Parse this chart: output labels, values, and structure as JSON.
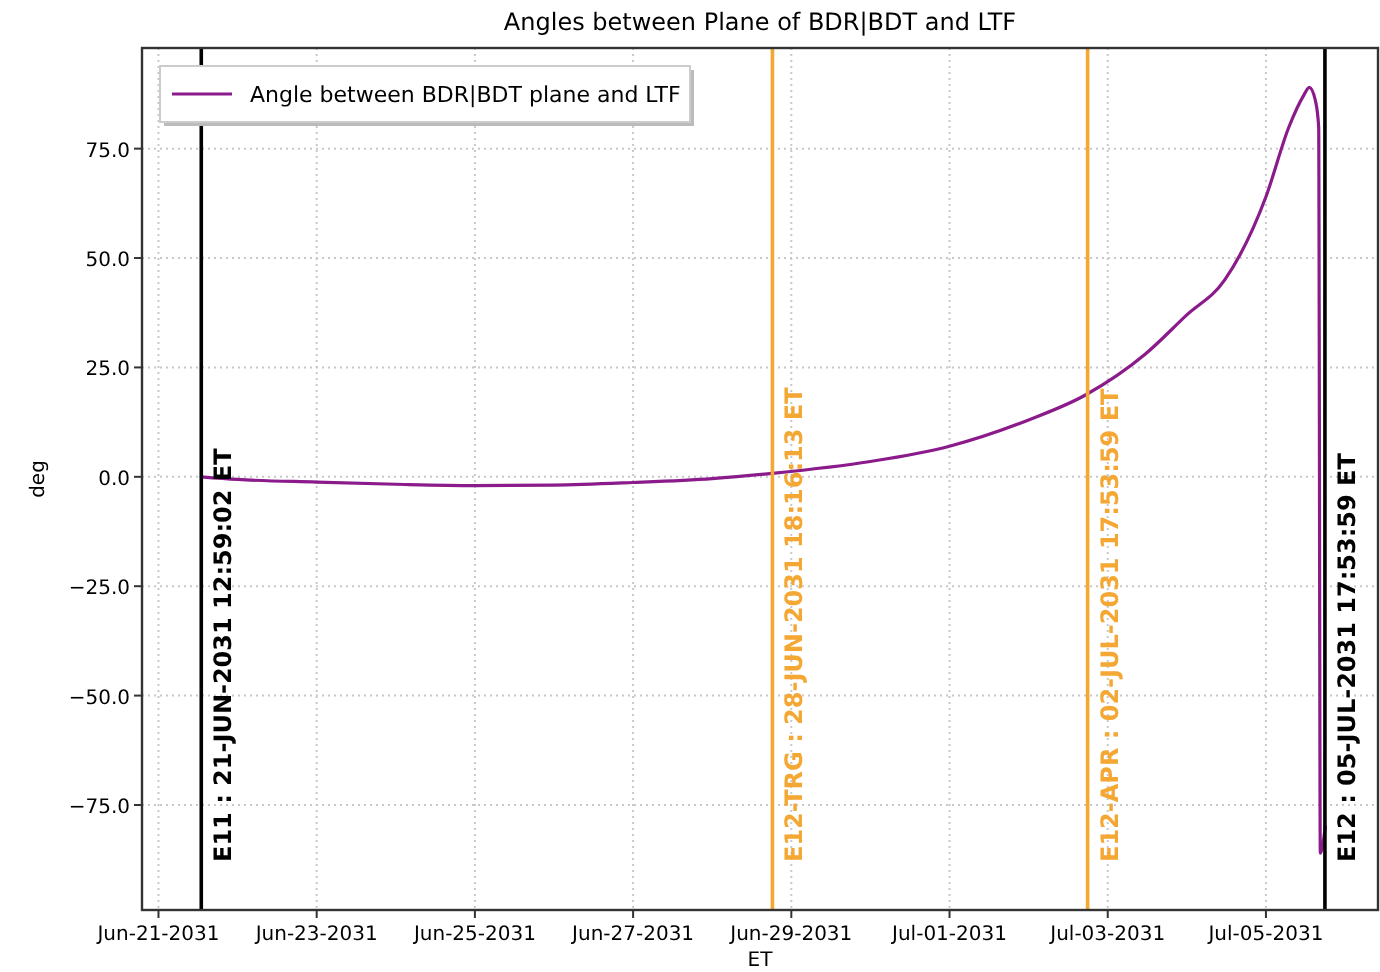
{
  "chart_data": {
    "type": "line",
    "title": "Angles between Plane of BDR|BDT and LTF",
    "xlabel": "ET",
    "ylabel": "deg",
    "series": [
      {
        "name": "Angle between BDR|BDT plane and LTF",
        "color": "#8b1a8b",
        "x": [
          "2031-06-21T12:59",
          "2031-06-22T00:00",
          "2031-06-23T00:00",
          "2031-06-24T00:00",
          "2031-06-25T00:00",
          "2031-06-26T00:00",
          "2031-06-27T00:00",
          "2031-06-28T00:00",
          "2031-06-28T18:16",
          "2031-06-30T00:00",
          "2031-07-01T00:00",
          "2031-07-02T00:00",
          "2031-07-02T17:15",
          "2031-07-03T11:20",
          "2031-07-04T00:00",
          "2031-07-04T11:30",
          "2031-07-05T00:00",
          "2031-07-05T07:00",
          "2031-07-05T11:20",
          "2031-07-05T13:10",
          "2031-07-05T15:00",
          "2031-07-05T16:00",
          "2031-07-05T16:30",
          "2031-07-05T18:00"
        ],
        "values": [
          0,
          -0.6,
          -1.2,
          -1.7,
          -2,
          -1.9,
          -1.3,
          -0.4,
          0.8,
          3.5,
          7,
          13,
          18.7,
          28,
          37,
          45,
          64,
          80,
          87,
          89,
          86,
          80,
          -86,
          -80
        ]
      }
    ],
    "xlim": [
      "2031-06-20T19:00",
      "2031-07-06T10:00"
    ],
    "ylim": [
      -99,
      98
    ],
    "xticks": [
      {
        "value": "2031-06-21",
        "label": "Jun-21-2031"
      },
      {
        "value": "2031-06-23",
        "label": "Jun-23-2031"
      },
      {
        "value": "2031-06-25",
        "label": "Jun-25-2031"
      },
      {
        "value": "2031-06-27",
        "label": "Jun-27-2031"
      },
      {
        "value": "2031-06-29",
        "label": "Jun-29-2031"
      },
      {
        "value": "2031-07-01",
        "label": "Jul-01-2031"
      },
      {
        "value": "2031-07-03",
        "label": "Jul-03-2031"
      },
      {
        "value": "2031-07-05",
        "label": "Jul-05-2031"
      }
    ],
    "yticks": [
      {
        "value": -75,
        "label": "−75.0"
      },
      {
        "value": -50,
        "label": "−50.0"
      },
      {
        "value": -25,
        "label": "−25.0"
      },
      {
        "value": 0,
        "label": "0.0"
      },
      {
        "value": 25,
        "label": "25.0"
      },
      {
        "value": 50,
        "label": "50.0"
      },
      {
        "value": 75,
        "label": "75.0"
      }
    ],
    "ref_lines": [
      {
        "axis": "x",
        "value": "2031-06-21T12:59:02",
        "label": "E11 : 21-JUN-2031 12:59:02 ET",
        "color": "#000000"
      },
      {
        "axis": "x",
        "value": "2031-06-28T18:16:13",
        "label": "E12-TRG : 28-JUN-2031 18:16:13 ET",
        "color": "#f5a733"
      },
      {
        "axis": "x",
        "value": "2031-07-02T17:53:59",
        "label": "E12-APR : 02-JUL-2031 17:53:59 ET",
        "color": "#f5a733"
      },
      {
        "axis": "x",
        "value": "2031-07-05T17:53:59",
        "label": "E12 : 05-JUL-2031 17:53:59 ET",
        "color": "#000000"
      }
    ],
    "grid": true,
    "legend": "top left",
    "marker": "none",
    "line_style": "solid"
  }
}
